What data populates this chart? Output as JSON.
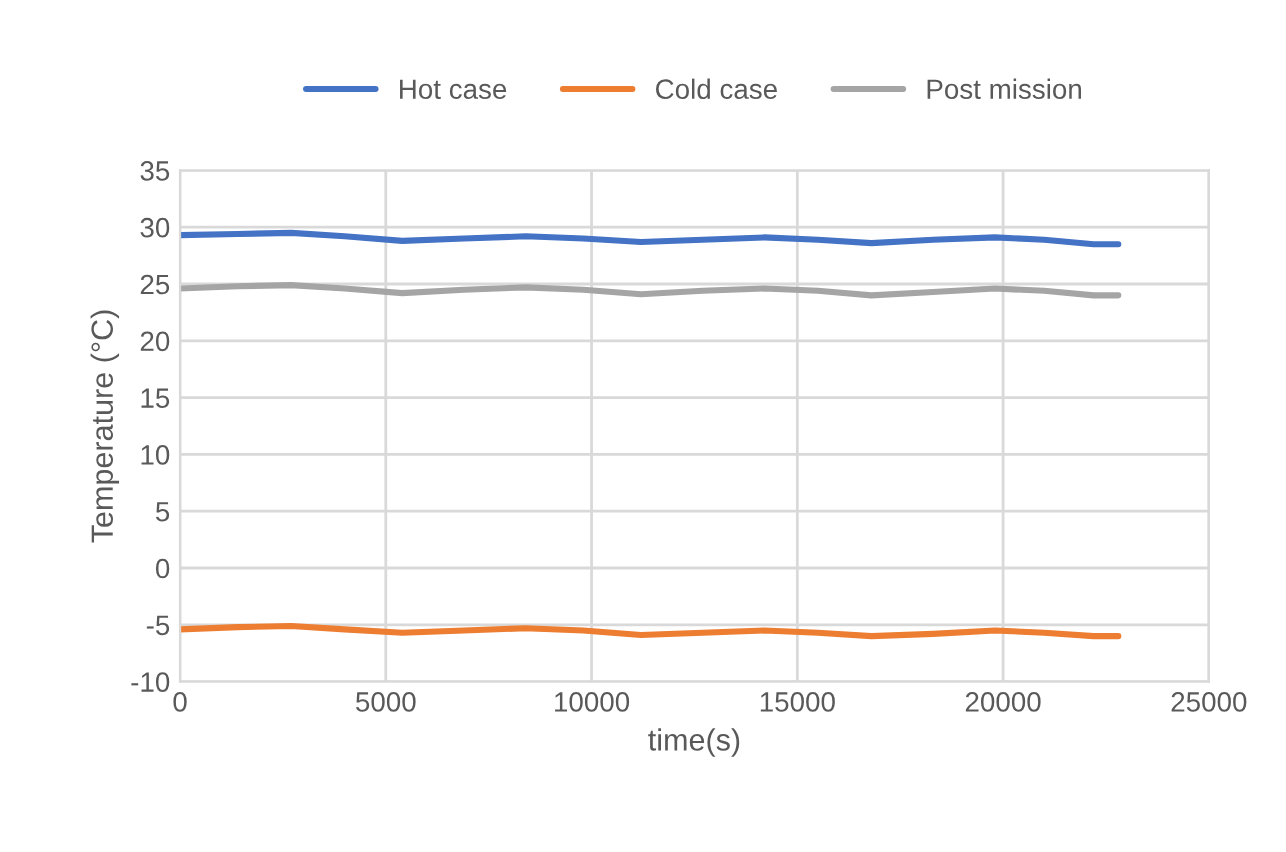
{
  "chart_data": {
    "type": "line",
    "xlabel": "time(s)",
    "ylabel": "Temperature (°C)",
    "xlim": [
      0,
      25000
    ],
    "xticks": [
      0,
      5000,
      10000,
      15000,
      20000,
      25000
    ],
    "ylim": [
      -10,
      35
    ],
    "yticks": [
      -10,
      -5,
      0,
      5,
      10,
      15,
      20,
      25,
      30,
      35
    ],
    "grid": true,
    "legend": "top",
    "marker": "none",
    "line_style": "solid",
    "x": [
      0,
      1400,
      2700,
      4000,
      5400,
      6900,
      8400,
      9800,
      11200,
      12700,
      14200,
      15500,
      16800,
      18300,
      19800,
      21000,
      22200,
      22800
    ],
    "series": [
      {
        "name": "Hot case",
        "color": "#4472c4",
        "values": [
          29.3,
          29.4,
          29.5,
          29.2,
          28.8,
          29.0,
          29.2,
          29.0,
          28.7,
          28.9,
          29.1,
          28.9,
          28.6,
          28.9,
          29.1,
          28.9,
          28.5,
          28.5
        ]
      },
      {
        "name": "Cold case",
        "color": "#ed7d31",
        "values": [
          -5.4,
          -5.2,
          -5.1,
          -5.4,
          -5.7,
          -5.5,
          -5.3,
          -5.5,
          -5.9,
          -5.7,
          -5.5,
          -5.7,
          -6.0,
          -5.8,
          -5.5,
          -5.7,
          -6.0,
          -6.0
        ]
      },
      {
        "name": "Post mission",
        "color": "#a5a5a5",
        "values": [
          24.6,
          24.8,
          24.9,
          24.6,
          24.2,
          24.5,
          24.7,
          24.5,
          24.1,
          24.4,
          24.6,
          24.4,
          24.0,
          24.3,
          24.6,
          24.4,
          24.0,
          24.0
        ]
      }
    ]
  }
}
